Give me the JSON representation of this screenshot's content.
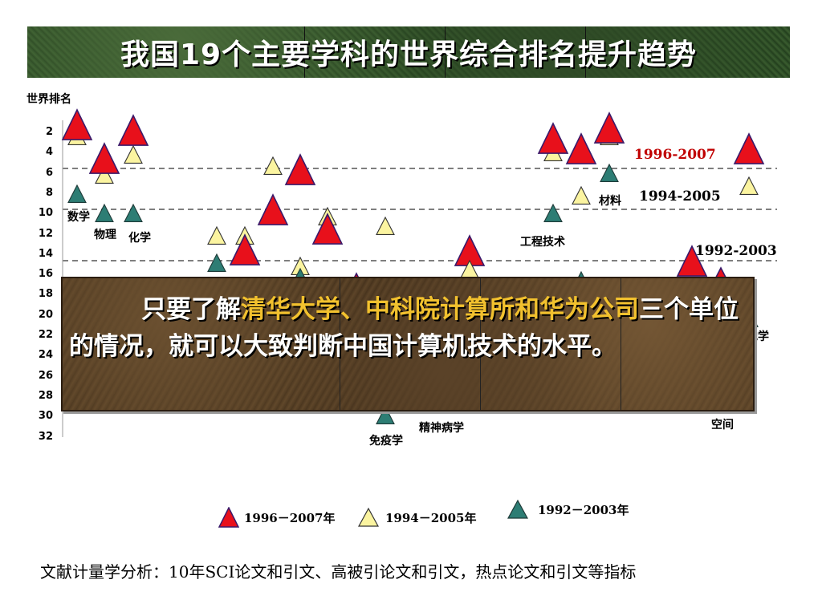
{
  "title": "我国19个主要学科的世界综合排名提升趋势",
  "y_axis": {
    "title": "世界排名",
    "ticks": [
      "2",
      "4",
      "6",
      "8",
      "10",
      "12",
      "14",
      "16",
      "18",
      "20",
      "22",
      "24",
      "26",
      "28",
      "30",
      "32"
    ]
  },
  "reference_lines": [
    {
      "label": "1996-2007",
      "color": "#c00000"
    },
    {
      "label": "1994-2005",
      "color": "#000000"
    },
    {
      "label": "1992-2003",
      "color": "#000000"
    }
  ],
  "subject_labels": [
    "数学",
    "物理",
    "化学",
    "工程技术",
    "材料",
    "地学",
    "免疫学",
    "精神病学",
    "空间"
  ],
  "legend": [
    {
      "label": "1996－2007年",
      "marker": "red-triangle"
    },
    {
      "label": "1994－2005年",
      "marker": "yellow-triangle"
    },
    {
      "label": "1992－2003年",
      "marker": "teal-triangle"
    }
  ],
  "colors": {
    "red": "#e8101b",
    "yellow": "#fbf4a0",
    "teal": "#2d7d74"
  },
  "overlay": {
    "line_indent": "只要了解",
    "highlight": "清华大学、中科院计算所和华为公司",
    "rest": "三个单位的情况，就可以大致判断中国计算机技术的水平。"
  },
  "footer": "文献计量学分析：10年SCI论文和引文、高被引论文和引文，热点论文和引文等指标"
}
